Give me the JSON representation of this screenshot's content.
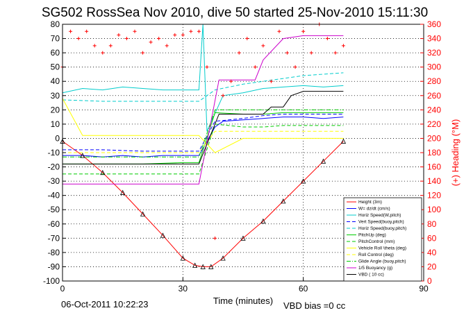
{
  "chart_data": {
    "type": "line",
    "title": "SG502 RossSea Nov 2010, dive 50 started 25-Nov-2010 15:11:30",
    "xlabel": "Time (minutes)",
    "ylabel": "",
    "y2label": "(+) Heading (°M)",
    "xlim": [
      0,
      90
    ],
    "ylim": [
      -100,
      80
    ],
    "y2lim": [
      0,
      360
    ],
    "xticks": [
      0,
      30,
      60,
      90
    ],
    "yticks": [
      -100,
      -90,
      -80,
      -70,
      -60,
      -50,
      -40,
      -30,
      -20,
      -10,
      0,
      10,
      20,
      30,
      40,
      50,
      60,
      70,
      80
    ],
    "y2ticks": [
      0,
      20,
      40,
      60,
      80,
      100,
      120,
      140,
      160,
      180,
      200,
      220,
      240,
      260,
      280,
      300,
      320,
      340,
      360
    ],
    "grid": true,
    "legend_position": "bottom-right",
    "series": [
      {
        "name": "Height (3m)",
        "color": "#ff0000",
        "style": "solid",
        "x": [
          0,
          5,
          10,
          15,
          20,
          25,
          30,
          33,
          35,
          37,
          40,
          45,
          50,
          55,
          60,
          65,
          70
        ],
        "y": [
          -2,
          -12,
          -24,
          -38,
          -53,
          -68,
          -84,
          -89,
          -90,
          -90,
          -84,
          -70,
          -58,
          -44,
          -30,
          -16,
          -2
        ]
      },
      {
        "name": "W= dz/dt (cm/s)",
        "color": "#0000ff",
        "style": "solid",
        "x": [
          0,
          5,
          10,
          15,
          20,
          25,
          30,
          34,
          36,
          38,
          40,
          45,
          50,
          55,
          60,
          65,
          70
        ],
        "y": [
          -12,
          -12,
          -13,
          -12,
          -13,
          -12,
          -12,
          -12,
          -2,
          8,
          12,
          13,
          14,
          15,
          15,
          14,
          15
        ]
      },
      {
        "name": "Horiz Speed(W,pitch)",
        "color": "#00cccc",
        "style": "solid",
        "x": [
          0,
          5,
          10,
          15,
          20,
          25,
          30,
          34,
          35,
          36,
          40,
          45,
          50,
          55,
          60,
          65,
          70
        ],
        "y": [
          32,
          35,
          34,
          36,
          35,
          34,
          34,
          34,
          80,
          5,
          30,
          32,
          35,
          36,
          37,
          36,
          37
        ]
      },
      {
        "name": "Vert Speed(buoy,pitch)",
        "color": "#0000ff",
        "style": "dashed",
        "x": [
          0,
          10,
          20,
          30,
          34,
          38,
          45,
          50,
          55,
          60,
          70
        ],
        "y": [
          -8,
          -8,
          -9,
          -9,
          -9,
          12,
          14,
          16,
          17,
          17,
          17
        ]
      },
      {
        "name": "Horiz Speed(buoy,pitch)",
        "color": "#00cccc",
        "style": "dashed",
        "x": [
          0,
          10,
          20,
          30,
          34,
          38,
          45,
          50,
          55,
          60,
          70
        ],
        "y": [
          27,
          26,
          26,
          26,
          26,
          34,
          38,
          40,
          42,
          44,
          46
        ]
      },
      {
        "name": "PitchUp (deg)",
        "color": "#00cc00",
        "style": "solid",
        "x": [
          0,
          10,
          20,
          30,
          34,
          38,
          45,
          50,
          55,
          60,
          70
        ],
        "y": [
          -18,
          -18,
          -18,
          -17,
          -17,
          18,
          17,
          17,
          18,
          18,
          18
        ]
      },
      {
        "name": "PitchControl (mm)",
        "color": "#00cc00",
        "style": "dashed",
        "x": [
          0,
          10,
          20,
          30,
          34,
          38,
          45,
          50,
          55,
          60,
          70
        ],
        "y": [
          -25,
          -25,
          -25,
          -25,
          -25,
          10,
          8,
          8,
          9,
          9,
          9
        ]
      },
      {
        "name": "Vehicle Roll \\theta (deg)",
        "color": "#ffff00",
        "style": "solid",
        "x": [
          0,
          5,
          10,
          15,
          20,
          25,
          30,
          34,
          38,
          45,
          50,
          55,
          60,
          65,
          70
        ],
        "y": [
          28,
          2,
          2,
          2,
          2,
          2,
          2,
          2,
          -10,
          0,
          0,
          0,
          0,
          0,
          0
        ]
      },
      {
        "name": "Roll Control (deg)",
        "color": "#ffff00",
        "style": "dashed",
        "x": [
          0,
          10,
          20,
          30,
          34,
          38,
          45,
          50,
          55,
          60,
          70
        ],
        "y": [
          -10,
          -10,
          -10,
          -10,
          -10,
          5,
          5,
          5,
          5,
          5,
          5
        ]
      },
      {
        "name": "Glide Angle (buoy,pitch)",
        "color": "#00cc00",
        "style": "dashdot",
        "x": [
          0,
          10,
          20,
          30,
          34,
          38,
          45,
          50,
          55,
          60,
          70
        ],
        "y": [
          -13,
          -13,
          -13,
          -13,
          -13,
          20,
          20,
          20,
          20,
          20,
          20
        ]
      },
      {
        "name": "1/5 Buoyancy (g)",
        "color": "#cc00cc",
        "style": "solid",
        "x": [
          0,
          34,
          39,
          48,
          50,
          55,
          60,
          70
        ],
        "y": [
          -32,
          -32,
          41,
          41,
          55,
          70,
          72,
          72
        ]
      },
      {
        "name": "VBD ( 10 cc)",
        "color": "#000000",
        "style": "solid",
        "x": [
          0,
          34,
          39,
          50,
          52,
          55,
          57,
          60,
          70
        ],
        "y": [
          -18,
          -18,
          17,
          17,
          22,
          22,
          30,
          33,
          33
        ]
      }
    ],
    "heading_series": {
      "marker": "+",
      "color": "#ff0000",
      "axis": "right",
      "x": [
        0,
        2,
        4,
        6,
        8,
        10,
        12,
        14,
        16,
        18,
        20,
        22,
        24,
        26,
        28,
        30,
        32,
        34,
        36,
        38,
        40,
        42,
        44,
        46,
        48,
        50,
        52,
        54,
        56,
        58,
        60,
        62,
        64,
        66,
        68,
        70
      ],
      "y": [
        300,
        350,
        340,
        350,
        330,
        320,
        330,
        345,
        340,
        350,
        320,
        335,
        340,
        330,
        345,
        345,
        350,
        350,
        300,
        60,
        260,
        280,
        320,
        340,
        300,
        330,
        280,
        350,
        320,
        300,
        350,
        320,
        360,
        340,
        320,
        330
      ]
    }
  },
  "footer": {
    "date": "06-Oct-2011 10:22:23",
    "note": "VBD bias =0 cc"
  }
}
